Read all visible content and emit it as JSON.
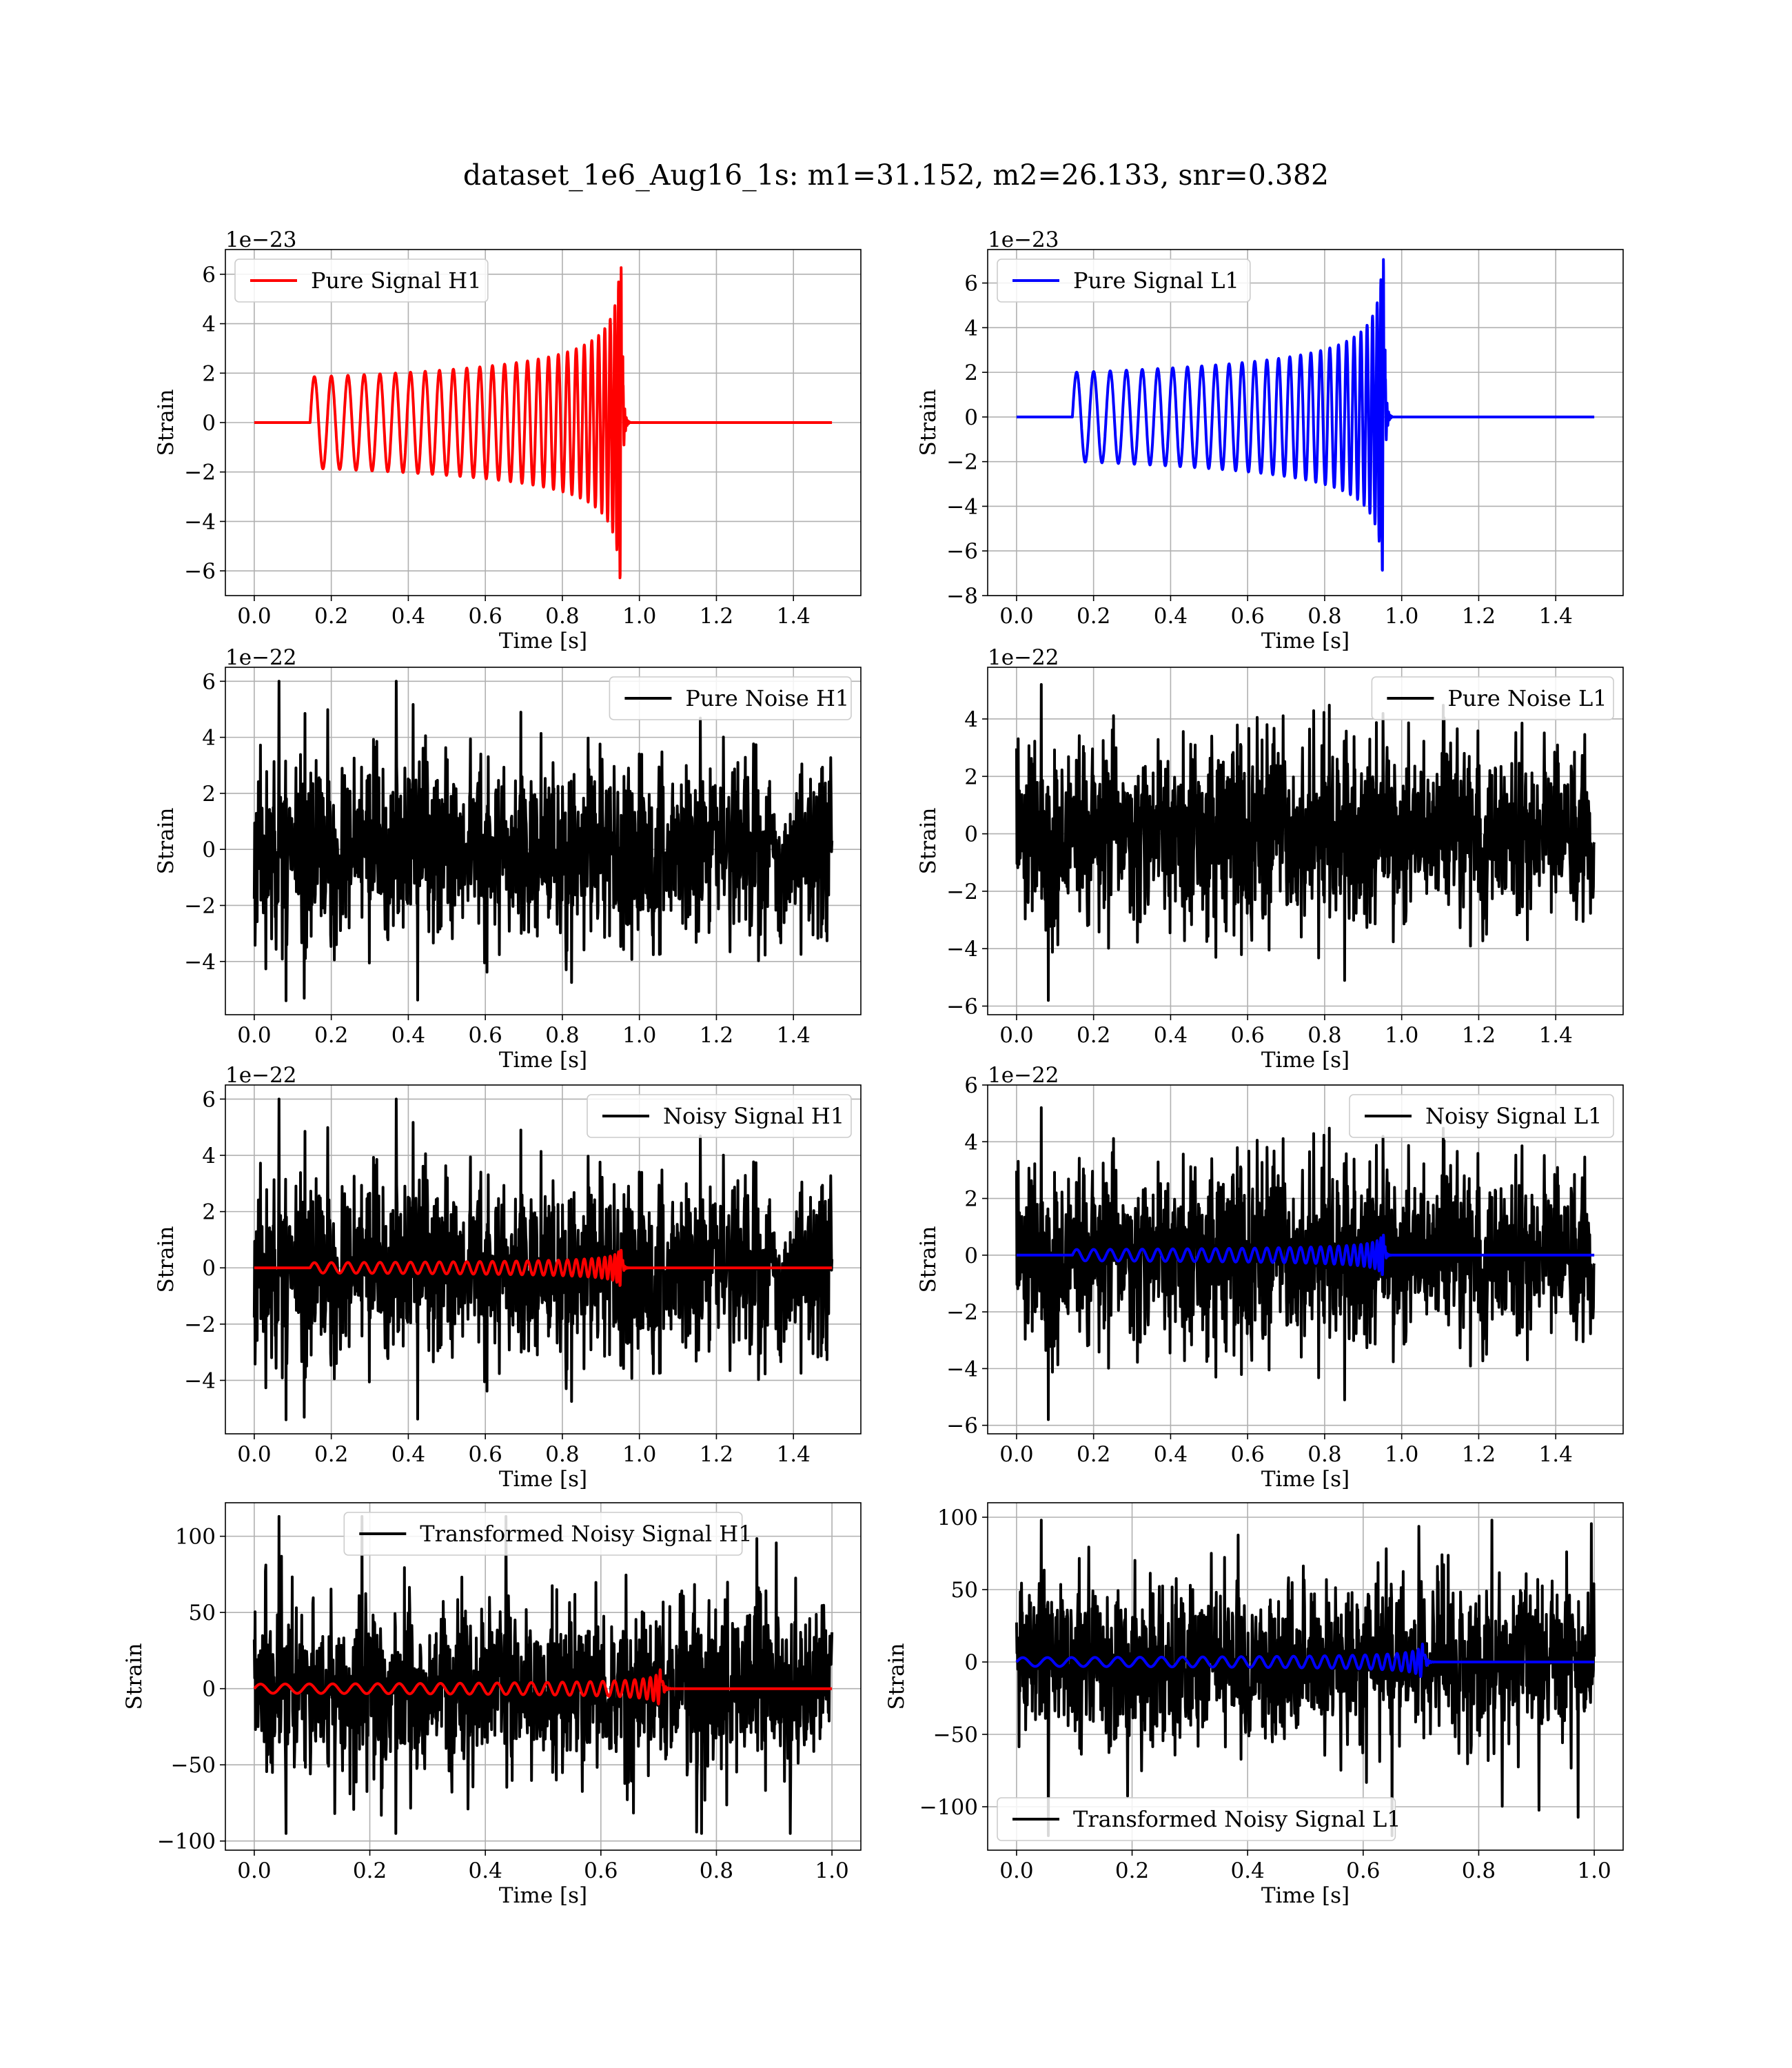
{
  "figure": {
    "title": "dataset_1e6_Aug16_1s: m1=31.152, m2=26.133, snr=0.382"
  },
  "chart_data": [
    {
      "id": "pure-signal-h1",
      "type": "line",
      "xlabel": "Time [s]",
      "ylabel": "Strain",
      "offset_text": "1e−23",
      "xlim": [
        -0.075,
        1.575
      ],
      "ylim": [
        -7.0,
        7.0
      ],
      "xticks": [
        0.0,
        0.2,
        0.4,
        0.6,
        0.8,
        1.0,
        1.2,
        1.4
      ],
      "xtick_labels": [
        "0.0",
        "0.2",
        "0.4",
        "0.6",
        "0.8",
        "1.0",
        "1.2",
        "1.4"
      ],
      "yticks": [
        -6,
        -4,
        -2,
        0,
        2,
        4,
        6
      ],
      "ytick_labels": [
        "−6",
        "−4",
        "−2",
        "0",
        "2",
        "4",
        "6"
      ],
      "legend_position": "upper left",
      "series": [
        {
          "name": "Pure Signal H1",
          "color": "#ff0000",
          "kind": "chirp",
          "duration": 1.5,
          "merger": 0.945,
          "start": 0.145,
          "inspiral_amp": 1.85,
          "peak_amp": 6.4,
          "pre_cycles": 29
        }
      ]
    },
    {
      "id": "pure-signal-l1",
      "type": "line",
      "xlabel": "Time [s]",
      "ylabel": "Strain",
      "offset_text": "1e−23",
      "xlim": [
        -0.075,
        1.575
      ],
      "ylim": [
        -8.0,
        7.5
      ],
      "xticks": [
        0.0,
        0.2,
        0.4,
        0.6,
        0.8,
        1.0,
        1.2,
        1.4
      ],
      "xtick_labels": [
        "0.0",
        "0.2",
        "0.4",
        "0.6",
        "0.8",
        "1.0",
        "1.2",
        "1.4"
      ],
      "yticks": [
        -8,
        -6,
        -4,
        -2,
        0,
        2,
        4,
        6
      ],
      "ytick_labels": [
        "−8",
        "−6",
        "−4",
        "−2",
        "0",
        "2",
        "4",
        "6"
      ],
      "legend_position": "upper left",
      "series": [
        {
          "name": "Pure Signal L1",
          "color": "#0000ff",
          "kind": "chirp",
          "duration": 1.5,
          "merger": 0.945,
          "start": 0.145,
          "inspiral_amp": 2.0,
          "peak_amp": 7.2,
          "pre_cycles": 29
        }
      ]
    },
    {
      "id": "pure-noise-h1",
      "type": "line",
      "xlabel": "Time [s]",
      "ylabel": "Strain",
      "offset_text": "1e−22",
      "xlim": [
        -0.075,
        1.575
      ],
      "ylim": [
        -5.9,
        6.5
      ],
      "xticks": [
        0.0,
        0.2,
        0.4,
        0.6,
        0.8,
        1.0,
        1.2,
        1.4
      ],
      "xtick_labels": [
        "0.0",
        "0.2",
        "0.4",
        "0.6",
        "0.8",
        "1.0",
        "1.2",
        "1.4"
      ],
      "yticks": [
        -4,
        -2,
        0,
        2,
        4,
        6
      ],
      "ytick_labels": [
        "−4",
        "−2",
        "0",
        "2",
        "4",
        "6"
      ],
      "legend_position": "upper right",
      "series": [
        {
          "name": "Pure Noise H1",
          "color": "#000000",
          "kind": "noise",
          "duration": 1.5,
          "sigma": 1.55,
          "max": 6.0,
          "min": -5.4,
          "seed": 11
        }
      ]
    },
    {
      "id": "pure-noise-l1",
      "type": "line",
      "xlabel": "Time [s]",
      "ylabel": "Strain",
      "offset_text": "1e−22",
      "xlim": [
        -0.075,
        1.575
      ],
      "ylim": [
        -6.3,
        5.8
      ],
      "xticks": [
        0.0,
        0.2,
        0.4,
        0.6,
        0.8,
        1.0,
        1.2,
        1.4
      ],
      "xtick_labels": [
        "0.0",
        "0.2",
        "0.4",
        "0.6",
        "0.8",
        "1.0",
        "1.2",
        "1.4"
      ],
      "yticks": [
        -6,
        -4,
        -2,
        0,
        2,
        4
      ],
      "ytick_labels": [
        "−6",
        "−4",
        "−2",
        "0",
        "2",
        "4"
      ],
      "legend_position": "upper right",
      "series": [
        {
          "name": "Pure Noise L1",
          "color": "#000000",
          "kind": "noise",
          "duration": 1.5,
          "sigma": 1.5,
          "max": 5.2,
          "min": -5.8,
          "seed": 23
        }
      ]
    },
    {
      "id": "noisy-signal-h1",
      "type": "line",
      "xlabel": "Time [s]",
      "ylabel": "Strain",
      "offset_text": "1e−22",
      "xlim": [
        -0.075,
        1.575
      ],
      "ylim": [
        -5.9,
        6.5
      ],
      "xticks": [
        0.0,
        0.2,
        0.4,
        0.6,
        0.8,
        1.0,
        1.2,
        1.4
      ],
      "xtick_labels": [
        "0.0",
        "0.2",
        "0.4",
        "0.6",
        "0.8",
        "1.0",
        "1.2",
        "1.4"
      ],
      "yticks": [
        -4,
        -2,
        0,
        2,
        4,
        6
      ],
      "ytick_labels": [
        "−4",
        "−2",
        "0",
        "2",
        "4",
        "6"
      ],
      "legend_position": "upper right",
      "series": [
        {
          "name": "Noisy Signal H1",
          "color": "#000000",
          "kind": "noise",
          "duration": 1.5,
          "sigma": 1.55,
          "max": 6.0,
          "min": -5.4,
          "seed": 11
        },
        {
          "name": "",
          "color": "#ff0000",
          "kind": "chirp",
          "duration": 1.5,
          "merger": 0.945,
          "start": 0.145,
          "inspiral_amp": 0.185,
          "peak_amp": 0.64,
          "pre_cycles": 29
        }
      ]
    },
    {
      "id": "noisy-signal-l1",
      "type": "line",
      "xlabel": "Time [s]",
      "ylabel": "Strain",
      "offset_text": "1e−22",
      "xlim": [
        -0.075,
        1.575
      ],
      "ylim": [
        -6.3,
        6.0
      ],
      "xticks": [
        0.0,
        0.2,
        0.4,
        0.6,
        0.8,
        1.0,
        1.2,
        1.4
      ],
      "xtick_labels": [
        "0.0",
        "0.2",
        "0.4",
        "0.6",
        "0.8",
        "1.0",
        "1.2",
        "1.4"
      ],
      "yticks": [
        -6,
        -4,
        -2,
        0,
        2,
        4,
        6
      ],
      "ytick_labels": [
        "−6",
        "−4",
        "−2",
        "0",
        "2",
        "4",
        "6"
      ],
      "legend_position": "upper right",
      "series": [
        {
          "name": "Noisy Signal L1",
          "color": "#000000",
          "kind": "noise",
          "duration": 1.5,
          "sigma": 1.5,
          "max": 5.2,
          "min": -5.8,
          "seed": 23
        },
        {
          "name": "",
          "color": "#0000ff",
          "kind": "chirp",
          "duration": 1.5,
          "merger": 0.945,
          "start": 0.145,
          "inspiral_amp": 0.2,
          "peak_amp": 0.72,
          "pre_cycles": 29
        }
      ]
    },
    {
      "id": "transformed-noisy-signal-h1",
      "type": "line",
      "xlabel": "Time [s]",
      "ylabel": "Strain",
      "offset_text": "",
      "xlim": [
        -0.05,
        1.05
      ],
      "ylim": [
        -106,
        122
      ],
      "xticks": [
        0.0,
        0.2,
        0.4,
        0.6,
        0.8,
        1.0
      ],
      "xtick_labels": [
        "0.0",
        "0.2",
        "0.4",
        "0.6",
        "0.8",
        "1.0"
      ],
      "yticks": [
        -100,
        -50,
        0,
        50,
        100
      ],
      "ytick_labels": [
        "−100",
        "−50",
        "0",
        "50",
        "100"
      ],
      "legend_position": "upper center",
      "series": [
        {
          "name": "Transformed Noisy Signal H1",
          "color": "#000000",
          "kind": "noise",
          "duration": 1.0,
          "sigma": 28,
          "max": 113,
          "min": -95,
          "seed": 37
        },
        {
          "name": "",
          "color": "#ff0000",
          "kind": "chirp",
          "duration": 1.0,
          "merger": 0.695,
          "start": 0.0,
          "inspiral_amp": 3,
          "peak_amp": 16,
          "pre_cycles": 26
        }
      ]
    },
    {
      "id": "transformed-noisy-signal-l1",
      "type": "line",
      "xlabel": "Time [s]",
      "ylabel": "Strain",
      "offset_text": "",
      "xlim": [
        -0.05,
        1.05
      ],
      "ylim": [
        -130,
        110
      ],
      "xticks": [
        0.0,
        0.2,
        0.4,
        0.6,
        0.8,
        1.0
      ],
      "xtick_labels": [
        "0.0",
        "0.2",
        "0.4",
        "0.6",
        "0.8",
        "1.0"
      ],
      "yticks": [
        -100,
        -50,
        0,
        50,
        100
      ],
      "ytick_labels": [
        "−100",
        "−50",
        "0",
        "50",
        "100"
      ],
      "legend_position": "lower left",
      "series": [
        {
          "name": "Transformed Noisy Signal L1",
          "color": "#000000",
          "kind": "noise",
          "duration": 1.0,
          "sigma": 27,
          "max": 98,
          "min": -120,
          "seed": 53
        },
        {
          "name": "",
          "color": "#0000ff",
          "kind": "chirp",
          "duration": 1.0,
          "merger": 0.695,
          "start": 0.0,
          "inspiral_amp": 3,
          "peak_amp": 17,
          "pre_cycles": 26
        }
      ]
    }
  ]
}
